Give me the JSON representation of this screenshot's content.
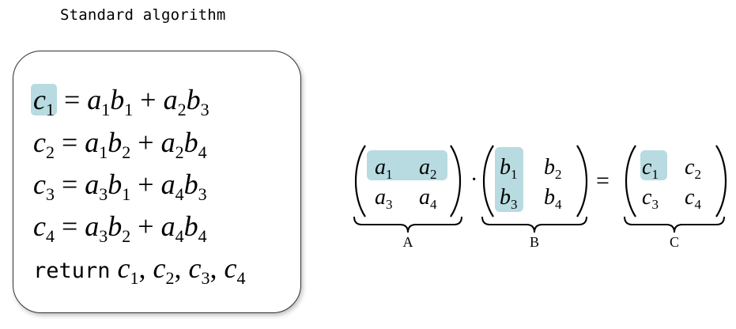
{
  "title": "Standard algorithm",
  "colors": {
    "highlight": "#b7dbe0",
    "box_border": "#333333"
  },
  "algorithm": {
    "lines": [
      {
        "lhs": "c",
        "lhs_sub": "1",
        "t1a": "a",
        "t1a_sub": "1",
        "t1b": "b",
        "t1b_sub": "1",
        "t2a": "a",
        "t2a_sub": "2",
        "t2b": "b",
        "t2b_sub": "3"
      },
      {
        "lhs": "c",
        "lhs_sub": "2",
        "t1a": "a",
        "t1a_sub": "1",
        "t1b": "b",
        "t1b_sub": "2",
        "t2a": "a",
        "t2a_sub": "2",
        "t2b": "b",
        "t2b_sub": "4"
      },
      {
        "lhs": "c",
        "lhs_sub": "3",
        "t1a": "a",
        "t1a_sub": "3",
        "t1b": "b",
        "t1b_sub": "1",
        "t2a": "a",
        "t2a_sub": "4",
        "t2b": "b",
        "t2b_sub": "3"
      },
      {
        "lhs": "c",
        "lhs_sub": "4",
        "t1a": "a",
        "t1a_sub": "3",
        "t1b": "b",
        "t1b_sub": "2",
        "t2a": "a",
        "t2a_sub": "4",
        "t2b": "b",
        "t2b_sub": "4"
      }
    ],
    "return_keyword": "return",
    "return_values": [
      {
        "v": "c",
        "sub": "1"
      },
      {
        "v": "c",
        "sub": "2"
      },
      {
        "v": "c",
        "sub": "3"
      },
      {
        "v": "c",
        "sub": "4"
      }
    ]
  },
  "matrices": {
    "A": {
      "label": "A",
      "cells": [
        [
          "a",
          "1"
        ],
        [
          "a",
          "2"
        ],
        [
          "a",
          "3"
        ],
        [
          "a",
          "4"
        ]
      ]
    },
    "B": {
      "label": "B",
      "cells": [
        [
          "b",
          "1"
        ],
        [
          "b",
          "2"
        ],
        [
          "b",
          "3"
        ],
        [
          "b",
          "4"
        ]
      ]
    },
    "C": {
      "label": "C",
      "cells": [
        [
          "c",
          "1"
        ],
        [
          "c",
          "2"
        ],
        [
          "c",
          "3"
        ],
        [
          "c",
          "4"
        ]
      ]
    },
    "dot": "·",
    "equals": "="
  }
}
